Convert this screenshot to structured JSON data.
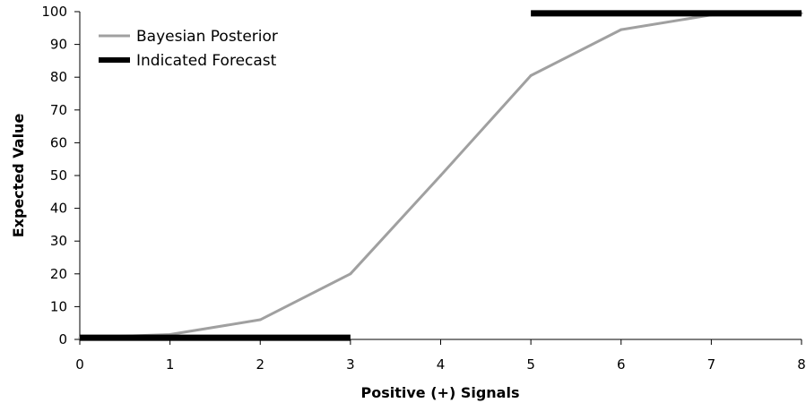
{
  "chart_data": {
    "type": "line",
    "xlabel": "Positive (+) Signals",
    "ylabel": "Expected Value",
    "xlim": [
      0,
      8
    ],
    "ylim": [
      0,
      100
    ],
    "x_ticks": [
      0,
      1,
      2,
      3,
      4,
      5,
      6,
      7,
      8
    ],
    "y_ticks": [
      0,
      10,
      20,
      30,
      40,
      50,
      60,
      70,
      80,
      90,
      100
    ],
    "grid": false,
    "legend_position": "top-left",
    "series": [
      {
        "name": "Bayesian Posterior",
        "color": "#a0a0a0",
        "style": "thin",
        "x": [
          0,
          1,
          2,
          3,
          4,
          5,
          6,
          7,
          8
        ],
        "y": [
          0.5,
          1.5,
          6,
          20,
          50,
          80.5,
          94.5,
          99,
          99.5
        ]
      },
      {
        "name": "Indicated Forecast",
        "color": "#000000",
        "style": "thick",
        "segments": [
          {
            "x": [
              0,
              3
            ],
            "y": [
              0.5,
              0.5
            ]
          },
          {
            "x": [
              5,
              8
            ],
            "y": [
              99.5,
              99.5
            ]
          }
        ]
      }
    ]
  }
}
